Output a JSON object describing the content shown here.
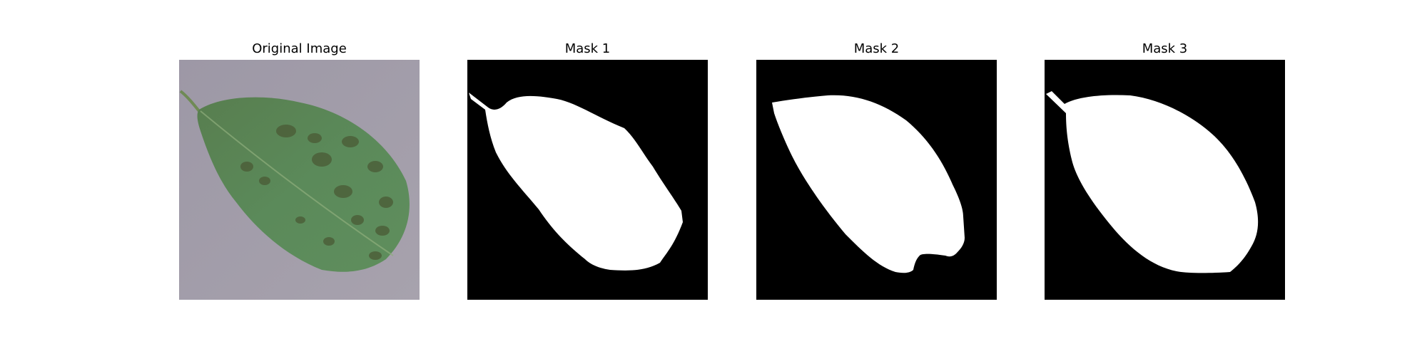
{
  "panels": [
    {
      "id": "original",
      "title": "Original Image"
    },
    {
      "id": "mask1",
      "title": "Mask 1"
    },
    {
      "id": "mask2",
      "title": "Mask 2"
    },
    {
      "id": "mask3",
      "title": "Mask 3"
    }
  ],
  "colors": {
    "background": "#a09ba6",
    "leaf": "#4f7a4c",
    "leaf_highlight": "#6d9665",
    "lesion": "#4a5a35",
    "mask_bg": "#000000",
    "mask_fg": "#ffffff"
  }
}
